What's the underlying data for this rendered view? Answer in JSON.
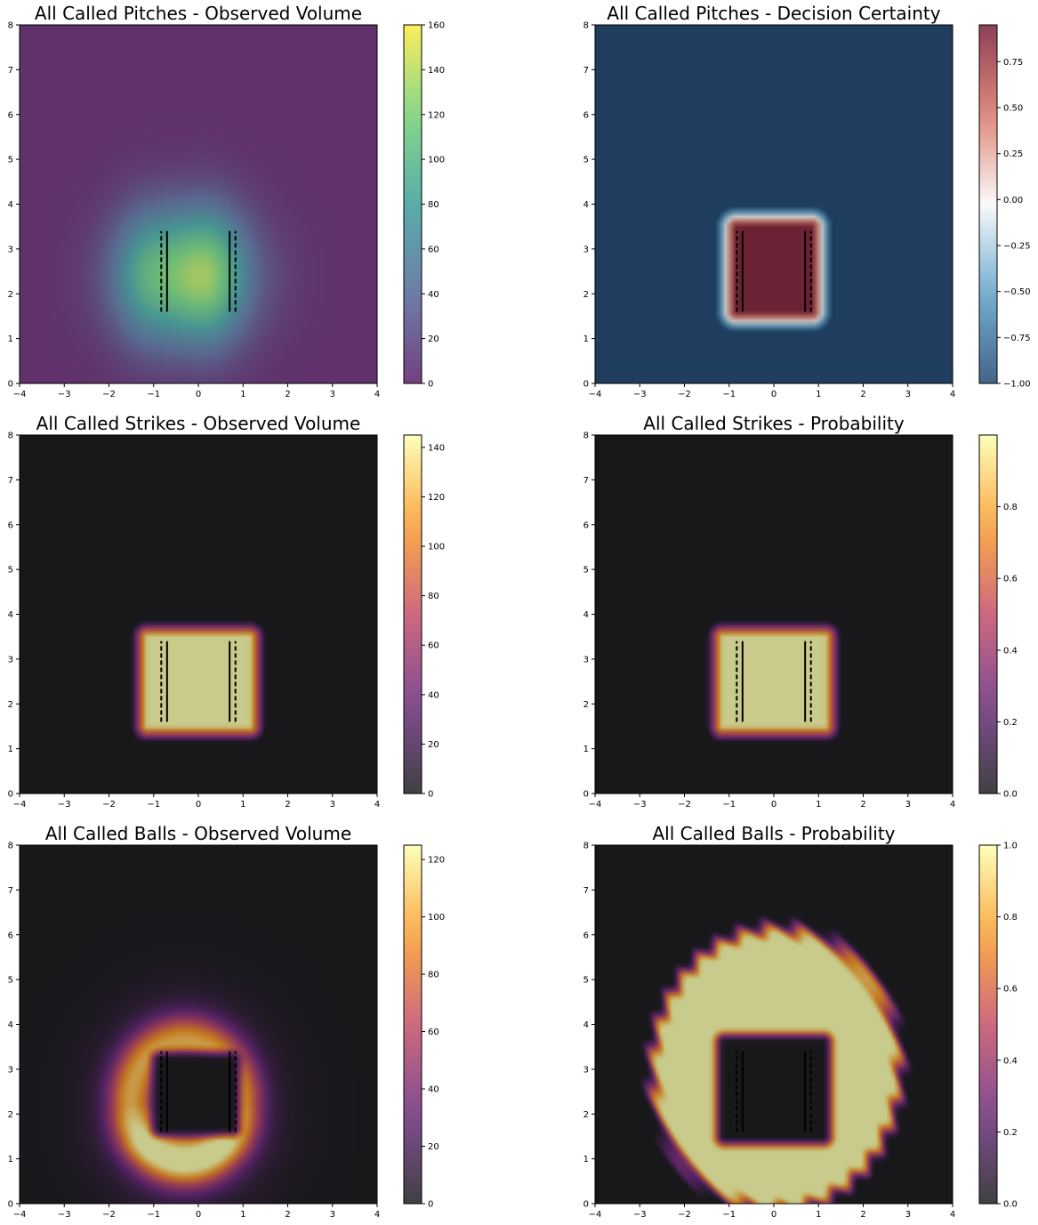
{
  "chart_data": [
    {
      "type": "heatmap",
      "title": "All  Called Pitches - Observed Volume",
      "colormap": "viridis",
      "xlim": [
        -4,
        4
      ],
      "ylim": [
        0,
        8
      ],
      "xticks": [
        "−4",
        "−3",
        "−2",
        "−1",
        "0",
        "1",
        "2",
        "3",
        "4"
      ],
      "yticks": [
        "0",
        "1",
        "2",
        "3",
        "4",
        "5",
        "6",
        "7",
        "8"
      ],
      "colorbar": {
        "min": 0,
        "max": 160,
        "ticks": [
          "0",
          "20",
          "40",
          "60",
          "80",
          "100",
          "120",
          "140",
          "160"
        ]
      },
      "density": {
        "shape": "blob",
        "cx": -0.3,
        "cy": 2.4,
        "rx": 1.6,
        "ry": 1.7,
        "peak_value": 160
      },
      "strike_zone_x": [
        -0.83,
        -0.7,
        0.7,
        0.83
      ],
      "strike_zone_y": [
        1.6,
        3.4
      ]
    },
    {
      "type": "heatmap",
      "title": "All  Called Pitches - Decision Certainty",
      "colormap": "RdBu_r",
      "xlim": [
        -4,
        4
      ],
      "ylim": [
        0,
        8
      ],
      "xticks": [
        "−4",
        "−3",
        "−2",
        "−1",
        "0",
        "1",
        "2",
        "3",
        "4"
      ],
      "yticks": [
        "0",
        "1",
        "2",
        "3",
        "4",
        "5",
        "6",
        "7",
        "8"
      ],
      "colorbar": {
        "min": -1.0,
        "max": 0.95,
        "ticks": [
          "−1.00",
          "−0.75",
          "−0.50",
          "−0.25",
          "0.00",
          "0.25",
          "0.50",
          "0.75"
        ]
      },
      "background_value": -1.0,
      "zone": {
        "x": [
          -0.85,
          0.85
        ],
        "y": [
          1.6,
          3.5
        ],
        "value": 0.95
      },
      "strike_zone_x": [
        -0.83,
        -0.7,
        0.7,
        0.83
      ],
      "strike_zone_y": [
        1.6,
        3.4
      ]
    },
    {
      "type": "heatmap",
      "title": "All Called Strikes - Observed Volume",
      "colormap": "inferno",
      "xlim": [
        -4,
        4
      ],
      "ylim": [
        0,
        8
      ],
      "xticks": [
        "−4",
        "−3",
        "−2",
        "−1",
        "0",
        "1",
        "2",
        "3",
        "4"
      ],
      "yticks": [
        "0",
        "1",
        "2",
        "3",
        "4",
        "5",
        "6",
        "7",
        "8"
      ],
      "colorbar": {
        "min": 0,
        "max": 145,
        "ticks": [
          "0",
          "20",
          "40",
          "60",
          "80",
          "100",
          "120",
          "140"
        ]
      },
      "density": {
        "shape": "box",
        "x": [
          -1.15,
          1.15
        ],
        "y": [
          1.5,
          3.5
        ],
        "peak_value": 140
      },
      "strike_zone_x": [
        -0.83,
        -0.7,
        0.7,
        0.83
      ],
      "strike_zone_y": [
        1.6,
        3.4
      ]
    },
    {
      "type": "heatmap",
      "title": "All Called Strikes - Probability",
      "colormap": "inferno",
      "xlim": [
        -4,
        4
      ],
      "ylim": [
        0,
        8
      ],
      "xticks": [
        "−4",
        "−3",
        "−2",
        "−1",
        "0",
        "1",
        "2",
        "3",
        "4"
      ],
      "yticks": [
        "0",
        "1",
        "2",
        "3",
        "4",
        "5",
        "6",
        "7",
        "8"
      ],
      "colorbar": {
        "min": 0,
        "max": 1.0,
        "ticks": [
          "0.0",
          "0.2",
          "0.4",
          "0.6",
          "0.8"
        ]
      },
      "density": {
        "shape": "box",
        "x": [
          -1.15,
          1.15
        ],
        "y": [
          1.5,
          3.5
        ],
        "peak_value": 0.98
      },
      "strike_zone_x": [
        -0.83,
        -0.7,
        0.7,
        0.83
      ],
      "strike_zone_y": [
        1.6,
        3.4
      ]
    },
    {
      "type": "heatmap",
      "title": "All Called Balls - Observed Volume",
      "colormap": "inferno",
      "xlim": [
        -4,
        4
      ],
      "ylim": [
        0,
        8
      ],
      "xticks": [
        "−4",
        "−3",
        "−2",
        "−1",
        "0",
        "1",
        "2",
        "3",
        "4"
      ],
      "yticks": [
        "0",
        "1",
        "2",
        "3",
        "4",
        "5",
        "6",
        "7",
        "8"
      ],
      "colorbar": {
        "min": 0,
        "max": 125,
        "ticks": [
          "0",
          "20",
          "40",
          "60",
          "80",
          "100",
          "120"
        ]
      },
      "density": {
        "shape": "ring",
        "cx": -0.3,
        "cy": 2.3,
        "rx": 2.0,
        "ry": 2.2,
        "peak_value": 120
      },
      "strike_zone_x": [
        -0.83,
        -0.7,
        0.7,
        0.83
      ],
      "strike_zone_y": [
        1.6,
        3.4
      ]
    },
    {
      "type": "heatmap",
      "title": "All Called Balls - Probability",
      "colormap": "inferno",
      "xlim": [
        -4,
        4
      ],
      "ylim": [
        0,
        8
      ],
      "xticks": [
        "−4",
        "−3",
        "−2",
        "−1",
        "0",
        "1",
        "2",
        "3",
        "4"
      ],
      "yticks": [
        "0",
        "1",
        "2",
        "3",
        "4",
        "5",
        "6",
        "7",
        "8"
      ],
      "colorbar": {
        "min": 0,
        "max": 1.0,
        "ticks": [
          "0.0",
          "0.2",
          "0.4",
          "0.6",
          "0.8",
          "1.0"
        ]
      },
      "density": {
        "shape": "ball_prob",
        "outer": {
          "cx": 0.05,
          "cy": 3.0,
          "rx": 3.0,
          "ry": 3.4
        },
        "hole": {
          "x": [
            -1.1,
            1.1
          ],
          "y": [
            1.5,
            3.6
          ]
        },
        "peak_value": 1.0
      },
      "strike_zone_x": [
        -0.83,
        -0.7,
        0.7,
        0.83
      ],
      "strike_zone_y": [
        1.6,
        3.4
      ]
    }
  ]
}
